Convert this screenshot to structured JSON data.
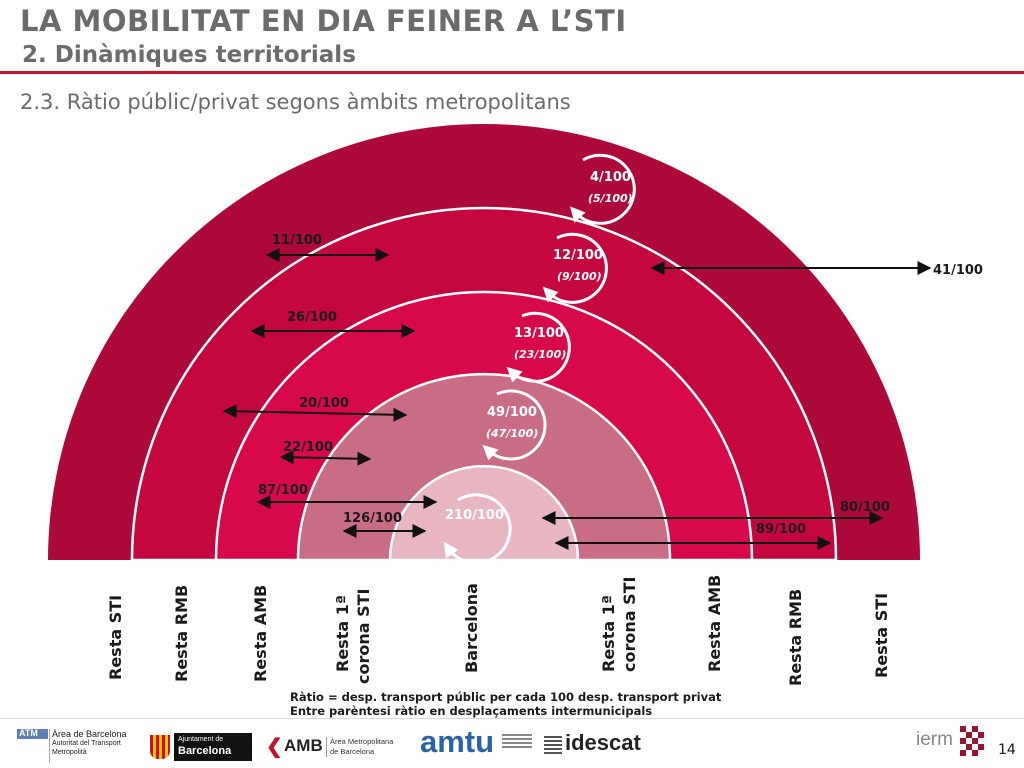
{
  "header": {
    "title": "LA MOBILITAT EN DIA FEINER A L’STI",
    "subtitle": "2. Dinàmiques territorials",
    "section": "2.3. Ràtio públic/privat segons àmbits metropolitans"
  },
  "colors": {
    "accent": "#c8102e",
    "ring_sti": "#ad0a3b",
    "ring_rmb": "#c4073f",
    "ring_amb": "#d8094a",
    "ring_corona": "#c96c86",
    "ring_barcelona": "#e8b5c3"
  },
  "diagram": {
    "internal_ratios": [
      {
        "ratio": "4/100",
        "intermunicipal": "(5/100)"
      },
      {
        "ratio": "12/100",
        "intermunicipal": "(9/100)"
      },
      {
        "ratio": "13/100",
        "intermunicipal": "(23/100)"
      },
      {
        "ratio": "49/100",
        "intermunicipal": "(47/100)"
      },
      {
        "ratio": "210/100",
        "intermunicipal": ""
      }
    ],
    "left_flows": [
      "11/100",
      "26/100",
      "20/100",
      "22/100",
      "87/100",
      "126/100"
    ],
    "right_flows": [
      "41/100",
      "80/100",
      "89/100"
    ],
    "zones": [
      "Resta STI",
      "Resta RMB",
      "Resta AMB",
      "Resta 1ª corona STI",
      "Barcelona",
      "Resta 1ª corona STI",
      "Resta AMB",
      "Resta RMB",
      "Resta STI"
    ]
  },
  "notes": {
    "line1": "Ràtio = desp. transport públic per cada 100 desp. transport privat",
    "line2": "Entre parèntesi ràtio en desplaçaments intermunicipals"
  },
  "footer": {
    "atm": "ATM",
    "atm_line1": "Àrea de Barcelona",
    "atm_line2": "Autoritat del Transport",
    "atm_line3": "Metropolità",
    "ajuntament_line1": "Ajuntament de",
    "ajuntament_line2": "Barcelona",
    "amb": "AMB",
    "amb_line1": "Àrea Metropolitana",
    "amb_line2": "de Barcelona",
    "amtu": "amtu",
    "idescat": "idescat",
    "ierm": "ierm",
    "page": "14"
  }
}
